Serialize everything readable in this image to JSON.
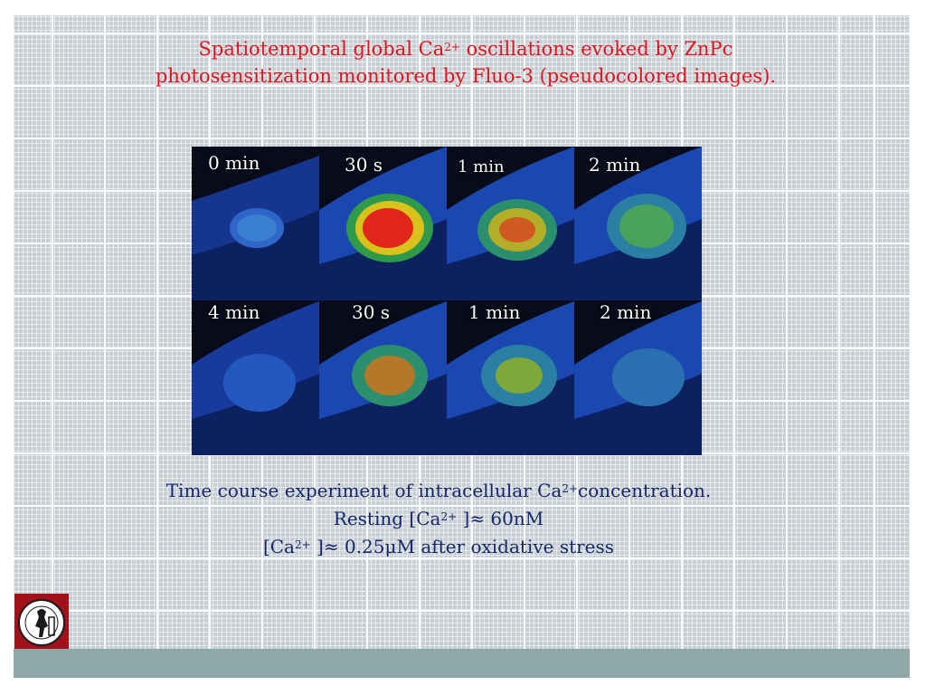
{
  "title": {
    "line1_prefix": "Spatiotemporal global Ca",
    "line1_sup": "2+",
    "line1_suffix": " oscillations evoked by ZnPc",
    "line2": "photosensitization monitored by Fluo-3 (pseudocolored images)."
  },
  "panels": {
    "row1": [
      "0 min",
      "30 s",
      "1 min",
      "2 min"
    ],
    "row2": [
      "4 min",
      "30 s",
      "1 min",
      "2 min"
    ]
  },
  "caption": {
    "line1_prefix": "Time course experiment of intracellular Ca",
    "line1_sup": "2+",
    "line1_suffix": "concentration.",
    "line2_prefix": "Resting [Ca",
    "line2_sup": "2+",
    "line2_suffix": " ]≈ 60nM",
    "line3_prefix": "[Ca",
    "line3_sup": "2+",
    "line3_suffix": " ]≈ 0.25μM after oxidative stress"
  },
  "colors": {
    "title": "#e0141e",
    "caption": "#14266e",
    "bottom_bar": "#8fa9a9",
    "logo_bg": "#a0121a"
  },
  "icons": {
    "logo": "university-seal-icon"
  }
}
